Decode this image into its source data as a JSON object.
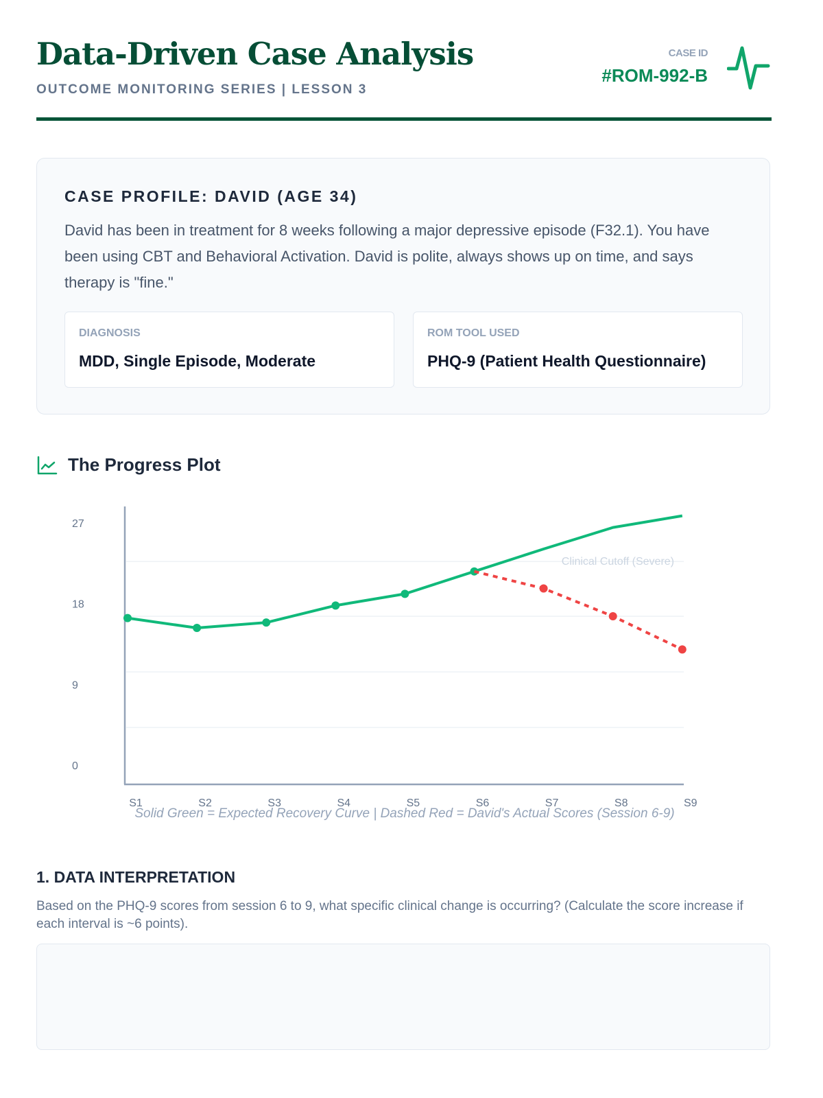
{
  "header": {
    "title": "Data-Driven Case Analysis",
    "subtitle": "OUTCOME MONITORING SERIES | LESSON 3",
    "case_id_label": "CASE ID",
    "case_id": "#ROM-992-B",
    "icon": "pulse-icon"
  },
  "profile": {
    "heading": "CASE PROFILE: DAVID (AGE 34)",
    "description": "David has been in treatment for 8 weeks following a major depressive episode (F32.1). You have been using CBT and Behavioral Activation. David is polite, always shows up on time, and says therapy is \"fine.\"",
    "diagnosis_label": "DIAGNOSIS",
    "diagnosis": "MDD, Single Episode, Moderate",
    "tool_label": "ROM TOOL USED",
    "tool": "PHQ-9 (Patient Health Questionnaire)"
  },
  "plot": {
    "title": "The Progress Plot",
    "icon": "line-chart-icon"
  },
  "chart_data": {
    "type": "line",
    "categories": [
      "S1",
      "S2",
      "S3",
      "S4",
      "S5",
      "S6",
      "S7",
      "S8",
      "S9"
    ],
    "y_ticks": [
      27,
      18,
      9,
      0
    ],
    "series": [
      {
        "name": "Expected Recovery Curve",
        "color": "#10b97a",
        "style": "solid",
        "values": [
          16.4,
          15.3,
          15.9,
          17.8,
          19.1,
          21.6,
          24.1,
          26.5,
          27.8
        ]
      },
      {
        "name": "David's Actual Scores",
        "color": "#ef4444",
        "style": "dashed",
        "values": [
          null,
          null,
          null,
          null,
          null,
          21.6,
          19.7,
          16.6,
          12.9
        ]
      }
    ],
    "cutoff": {
      "label": "Clinical Cutoff (Severe)",
      "value": 22.7
    },
    "caption": "Solid Green = Expected Recovery Curve | Dashed Red = David's Actual Scores (Session 6-9)"
  },
  "question": {
    "title": "1. DATA INTERPRETATION",
    "text": "Based on the PHQ-9 scores from session 6 to 9, what specific clinical change is occurring? (Calculate the score increase if each interval is ~6 points).",
    "answer": ""
  }
}
